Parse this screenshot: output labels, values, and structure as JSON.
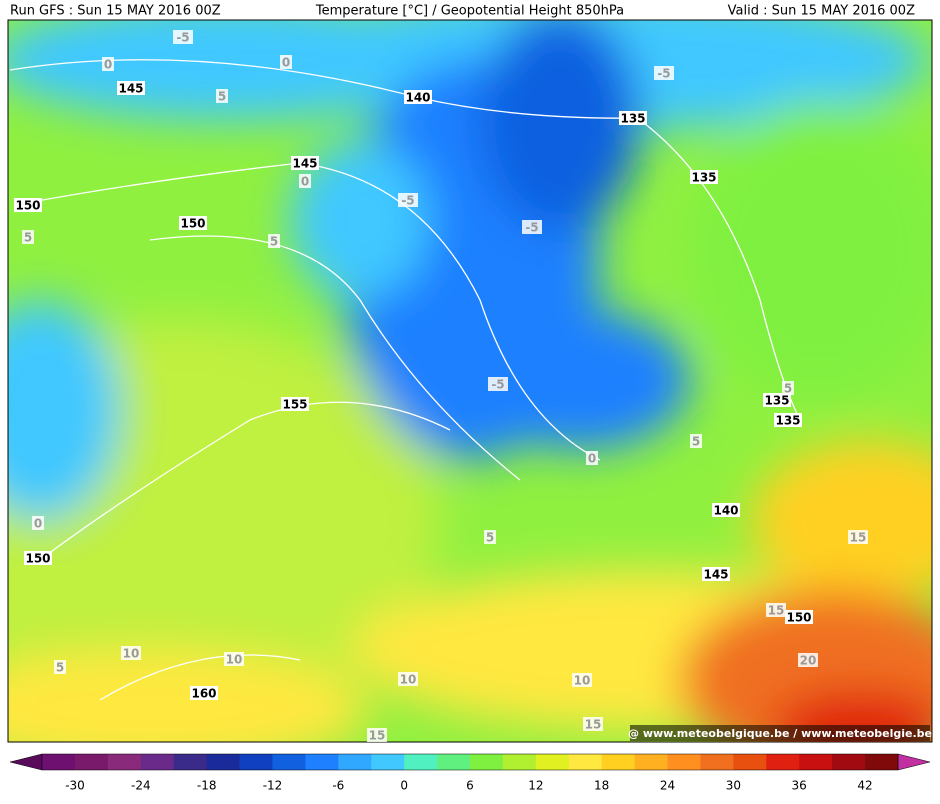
{
  "header": {
    "left": "Run GFS : Sun 15 MAY 2016 00Z",
    "center": "Temperature [°C] / Geopotential Height 850hPa",
    "right": "Valid : Sun 15 MAY 2016 00Z"
  },
  "contour_labels": [
    "-5",
    "0",
    "0",
    "145",
    "5",
    "-5",
    "140",
    "135",
    "145",
    "0",
    "135",
    "150",
    "5",
    "150",
    "-5",
    "-5",
    "5",
    "155",
    "-5",
    "5",
    "135",
    "135",
    "5",
    "0",
    "0",
    "140",
    "5",
    "15",
    "150",
    "145",
    "15",
    "150",
    "10",
    "10",
    "5",
    "20",
    "160",
    "10",
    "10",
    "15",
    "15"
  ],
  "watermark": "@ www.meteobelgique.be / www.meteobelgie.be",
  "colorbar": {
    "ticks": [
      -30,
      -24,
      -18,
      -12,
      -6,
      0,
      6,
      12,
      18,
      24,
      30,
      36,
      42
    ],
    "colors": [
      "#5a0a5a",
      "#6e1070",
      "#7a1a6a",
      "#8a2a7a",
      "#6a2a8a",
      "#3a2a8a",
      "#1a2a9a",
      "#1040c0",
      "#1060e0",
      "#1e80ff",
      "#30a8ff",
      "#40c8ff",
      "#50f0c0",
      "#60f080",
      "#80f040",
      "#b0f030",
      "#e0f020",
      "#ffe840",
      "#ffd020",
      "#ffb020",
      "#ff9020",
      "#f07020",
      "#e85010",
      "#e02010",
      "#c81010",
      "#a00a10",
      "#800a0a",
      "#c030a0"
    ]
  }
}
